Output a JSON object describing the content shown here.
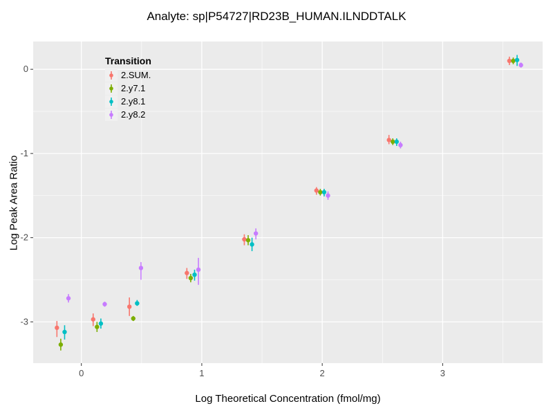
{
  "page": {
    "title": "Analyte: sp|P54727|RD23B_HUMAN.ILNDDTALK"
  },
  "chart_data": {
    "type": "scatter",
    "title": "Analyte: sp|P54727|RD23B_HUMAN.ILNDDTALK",
    "xlabel": "Log Theoretical Concentration (fmol/mg)",
    "ylabel": "Log Peak Area Ratio",
    "xlim": [
      -0.4,
      3.83
    ],
    "ylim": [
      -3.49,
      0.33
    ],
    "x_ticks": [
      0,
      1,
      2,
      3
    ],
    "y_ticks": [
      0,
      -1,
      -2,
      -3
    ],
    "x_minor": [
      0.5,
      1.5,
      2.5,
      3.5
    ],
    "y_minor": [
      -0.5,
      -1.5,
      -2.5
    ],
    "grid": true,
    "panel_bg": "#EBEBEB",
    "grid_color": "#FFFFFF",
    "tick_color": "#333333",
    "tick_label_color": "#4D4D4D",
    "legend_title": "Transition",
    "legend_position": "inside-top-left",
    "error_bars": true,
    "dodge": [
      -0.048,
      -0.016,
      0.016,
      0.048
    ],
    "x": [
      -0.155,
      0.146,
      0.447,
      0.924,
      1.401,
      2.0,
      2.602,
      3.602
    ],
    "series": [
      {
        "name": "2.SUM.",
        "color": "#F8766D",
        "y": [
          -3.07,
          -2.97,
          -2.82,
          -2.42,
          -2.02,
          -1.44,
          -0.84,
          0.1
        ],
        "ymin": [
          -3.18,
          -3.05,
          -2.93,
          -2.49,
          -2.09,
          -1.49,
          -0.89,
          0.05
        ],
        "ymax": [
          -2.99,
          -2.9,
          -2.71,
          -2.36,
          -1.96,
          -1.4,
          -0.78,
          0.15
        ]
      },
      {
        "name": "2.y7.1",
        "color": "#7CAE00",
        "y": [
          -3.27,
          -3.06,
          -2.96,
          -2.48,
          -2.03,
          -1.46,
          -0.86,
          0.1
        ],
        "ymin": [
          -3.34,
          -3.12,
          -2.99,
          -2.53,
          -2.09,
          -1.5,
          -0.9,
          0.06
        ],
        "ymax": [
          -3.2,
          -3.0,
          -2.93,
          -2.43,
          -1.97,
          -1.42,
          -0.82,
          0.14
        ]
      },
      {
        "name": "2.y8.1",
        "color": "#00BFC4",
        "y": [
          -3.12,
          -3.02,
          -2.78,
          -2.44,
          -2.08,
          -1.46,
          -0.86,
          0.11
        ],
        "ymin": [
          -3.21,
          -3.08,
          -2.81,
          -2.51,
          -2.16,
          -1.51,
          -0.91,
          0.04
        ],
        "ymax": [
          -3.04,
          -2.96,
          -2.74,
          -2.38,
          -2.0,
          -1.42,
          -0.82,
          0.17
        ]
      },
      {
        "name": "2.y8.2",
        "color": "#C77CFF",
        "y": [
          -2.72,
          -2.79,
          -2.36,
          -2.38,
          -1.95,
          -1.5,
          -0.9,
          0.05
        ],
        "ymin": [
          -2.77,
          -2.82,
          -2.5,
          -2.56,
          -2.02,
          -1.55,
          -0.94,
          0.02
        ],
        "ymax": [
          -2.67,
          -2.76,
          -2.29,
          -2.24,
          -1.89,
          -1.45,
          -0.86,
          0.08
        ]
      }
    ]
  }
}
